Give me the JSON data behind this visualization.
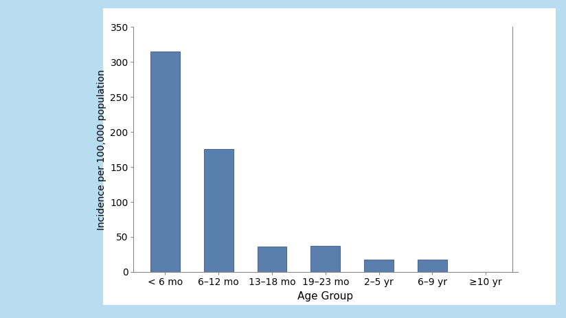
{
  "categories": [
    "< 6 mo",
    "6–12 mo",
    "13–18 mo",
    "19–23 mo",
    "2–5 yr",
    "6–9 yr",
    "≥10 yr"
  ],
  "values": [
    315,
    176,
    36,
    37,
    18,
    18,
    0
  ],
  "bar_color": "#5b7fad",
  "bar_edge_color": "#4a6a95",
  "ylabel": "Incidence per 100,000 population",
  "xlabel": "Age Group",
  "ylim": [
    0,
    350
  ],
  "yticks": [
    0,
    50,
    100,
    150,
    200,
    250,
    300,
    350
  ],
  "background_color": "#ffffff",
  "outer_background": "#b8dcf0",
  "white_box_color": "#ffffff",
  "bar_width": 0.55,
  "spine_color": "#888888",
  "tick_color": "#333333",
  "label_fontsize": 10,
  "xlabel_fontsize": 11,
  "right_line_color": "#888888"
}
